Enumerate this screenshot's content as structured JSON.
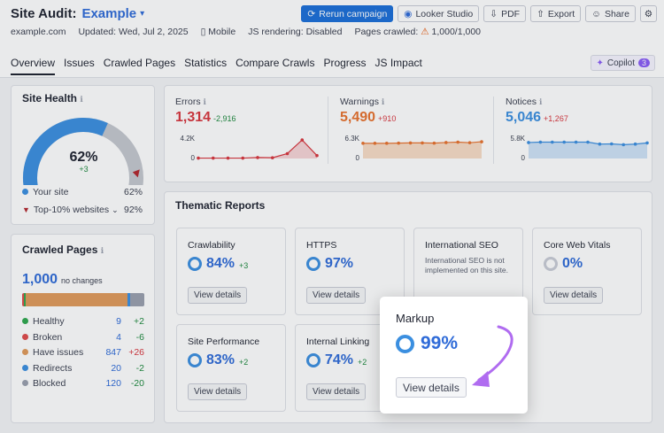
{
  "header": {
    "title_label": "Site Audit:",
    "project": "Example",
    "actions": {
      "rerun": "Rerun campaign",
      "looker": "Looker Studio",
      "pdf": "PDF",
      "export": "Export",
      "share": "Share"
    },
    "meta": {
      "domain": "example.com",
      "updated": "Updated: Wed, Jul 2, 2025",
      "device": "Mobile",
      "js_rendering": "JS rendering: Disabled",
      "pages_crawled_label": "Pages crawled:",
      "pages_crawled_value": "1,000/1,000"
    }
  },
  "tabs": [
    "Overview",
    "Issues",
    "Crawled Pages",
    "Statistics",
    "Compare Crawls",
    "Progress",
    "JS Impact"
  ],
  "copilot": {
    "label": "Copilot",
    "count": "3"
  },
  "site_health": {
    "title": "Site Health",
    "score": "62%",
    "change": "+3",
    "score_fraction": 0.62,
    "top10_fraction": 0.92,
    "legend": [
      {
        "label": "Your site",
        "value": "62%"
      },
      {
        "label": "Top-10% websites",
        "value": "92%"
      }
    ]
  },
  "crawled_pages": {
    "title": "Crawled Pages",
    "total": "1,000",
    "note": "no changes",
    "bar_segments": [
      {
        "color": "#e04b4b",
        "value": 4
      },
      {
        "color": "#2fa84f",
        "value": 9
      },
      {
        "color": "#e09a5b",
        "value": 847
      },
      {
        "color": "#3b8fe0",
        "value": 20
      },
      {
        "color": "#9aa0ae",
        "value": 120
      }
    ],
    "rows": [
      {
        "label": "Healthy",
        "value": "9",
        "change": "+2",
        "color": "#2fa84f",
        "change_color": "#1f8a3f"
      },
      {
        "label": "Broken",
        "value": "4",
        "change": "-6",
        "color": "#e04b4b",
        "change_color": "#1f8a3f"
      },
      {
        "label": "Have issues",
        "value": "847",
        "change": "+26",
        "color": "#e09a5b",
        "change_color": "#d9363e"
      },
      {
        "label": "Redirects",
        "value": "20",
        "change": "-2",
        "color": "#3b8fe0",
        "change_color": "#1f8a3f"
      },
      {
        "label": "Blocked",
        "value": "120",
        "change": "-20",
        "color": "#9aa0ae",
        "change_color": "#1f8a3f"
      }
    ]
  },
  "metrics": [
    {
      "label": "Errors",
      "value": "1,314",
      "change": "-2,916",
      "ymax": "4.2K",
      "ymin": "0",
      "color": "#d9363e",
      "fill": "#f6d4d6",
      "change_color": "#1f8a3f",
      "points": [
        0.02,
        0.02,
        0.02,
        0.02,
        0.05,
        0.04,
        0.25,
        0.95,
        0.15
      ]
    },
    {
      "label": "Warnings",
      "value": "5,490",
      "change": "+910",
      "ymax": "6.3K",
      "ymin": "0",
      "color": "#e8722e",
      "fill": "#f8dcc6",
      "change_color": "#d9363e",
      "points": [
        0.78,
        0.78,
        0.78,
        0.79,
        0.8,
        0.8,
        0.79,
        0.82,
        0.84,
        0.81,
        0.86
      ]
    },
    {
      "label": "Notices",
      "value": "5,046",
      "change": "+1,267",
      "ymax": "5.8K",
      "ymin": "0",
      "color": "#3b8fe0",
      "fill": "#cfe2f6",
      "change_color": "#d9363e",
      "points": [
        0.82,
        0.84,
        0.84,
        0.84,
        0.84,
        0.84,
        0.74,
        0.75,
        0.71,
        0.74,
        0.8
      ]
    }
  ],
  "thematic": {
    "title": "Thematic Reports",
    "view_label": "View details",
    "reports": [
      {
        "name": "Crawlability",
        "pct": "84%",
        "change": "+3"
      },
      {
        "name": "HTTPS",
        "pct": "97%",
        "change": ""
      },
      {
        "name": "International SEO",
        "note": "International SEO is not implemented on this site."
      },
      {
        "name": "Core Web Vitals",
        "pct": "0%",
        "change": ""
      },
      {
        "name": "Site Performance",
        "pct": "83%",
        "change": "+2"
      },
      {
        "name": "Internal Linking",
        "pct": "74%",
        "change": "+2"
      }
    ],
    "highlight": {
      "name": "Markup",
      "pct": "99%",
      "view_label": "View details"
    }
  },
  "accent_arrow_color": "#b06cf0"
}
